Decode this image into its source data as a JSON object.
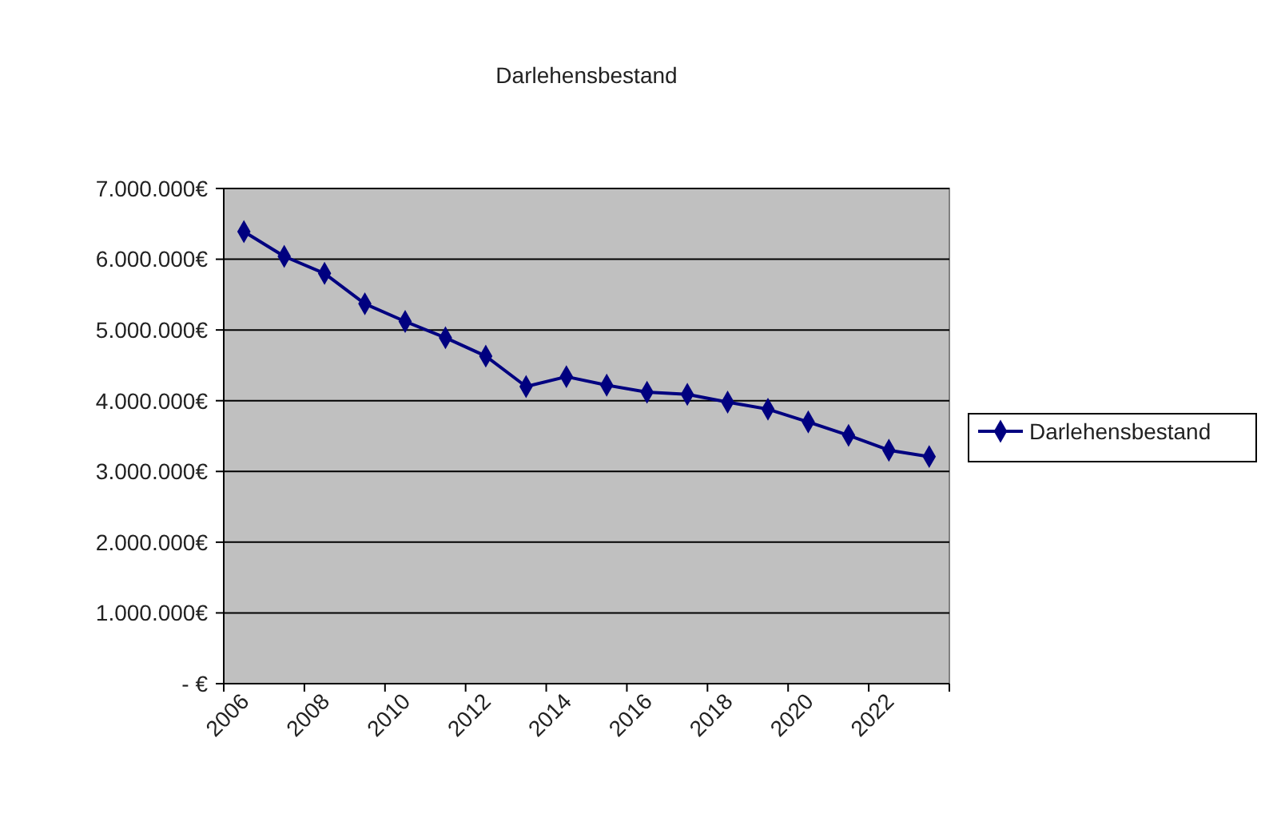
{
  "chart_data": {
    "type": "line",
    "title": "Darlehensbestand",
    "categories": [
      "2006",
      null,
      "2008",
      null,
      "2010",
      null,
      "2012",
      null,
      "2014",
      null,
      "2016",
      null,
      "2018",
      null,
      "2020",
      null,
      "2022",
      null
    ],
    "series": [
      {
        "name": "Darlehensbestand",
        "color": "#000080",
        "values": [
          6390000,
          6040000,
          5800000,
          5370000,
          5120000,
          4890000,
          4630000,
          4200000,
          4340000,
          4220000,
          4120000,
          4090000,
          3980000,
          3880000,
          3700000,
          3510000,
          3300000,
          3210000
        ]
      }
    ],
    "ylim": [
      0,
      7000000
    ],
    "yticks": [
      {
        "value": 0,
        "label": "-   €"
      },
      {
        "value": 1000000,
        "label": "1.000.000€"
      },
      {
        "value": 2000000,
        "label": "2.000.000€"
      },
      {
        "value": 3000000,
        "label": "3.000.000€"
      },
      {
        "value": 4000000,
        "label": "4.000.000€"
      },
      {
        "value": 5000000,
        "label": "5.000.000€"
      },
      {
        "value": 6000000,
        "label": "6.000.000€"
      },
      {
        "value": 7000000,
        "label": "7.000.000€"
      }
    ],
    "grid": "y",
    "legend": "right",
    "marker": "diamond",
    "line_style": "solid"
  }
}
